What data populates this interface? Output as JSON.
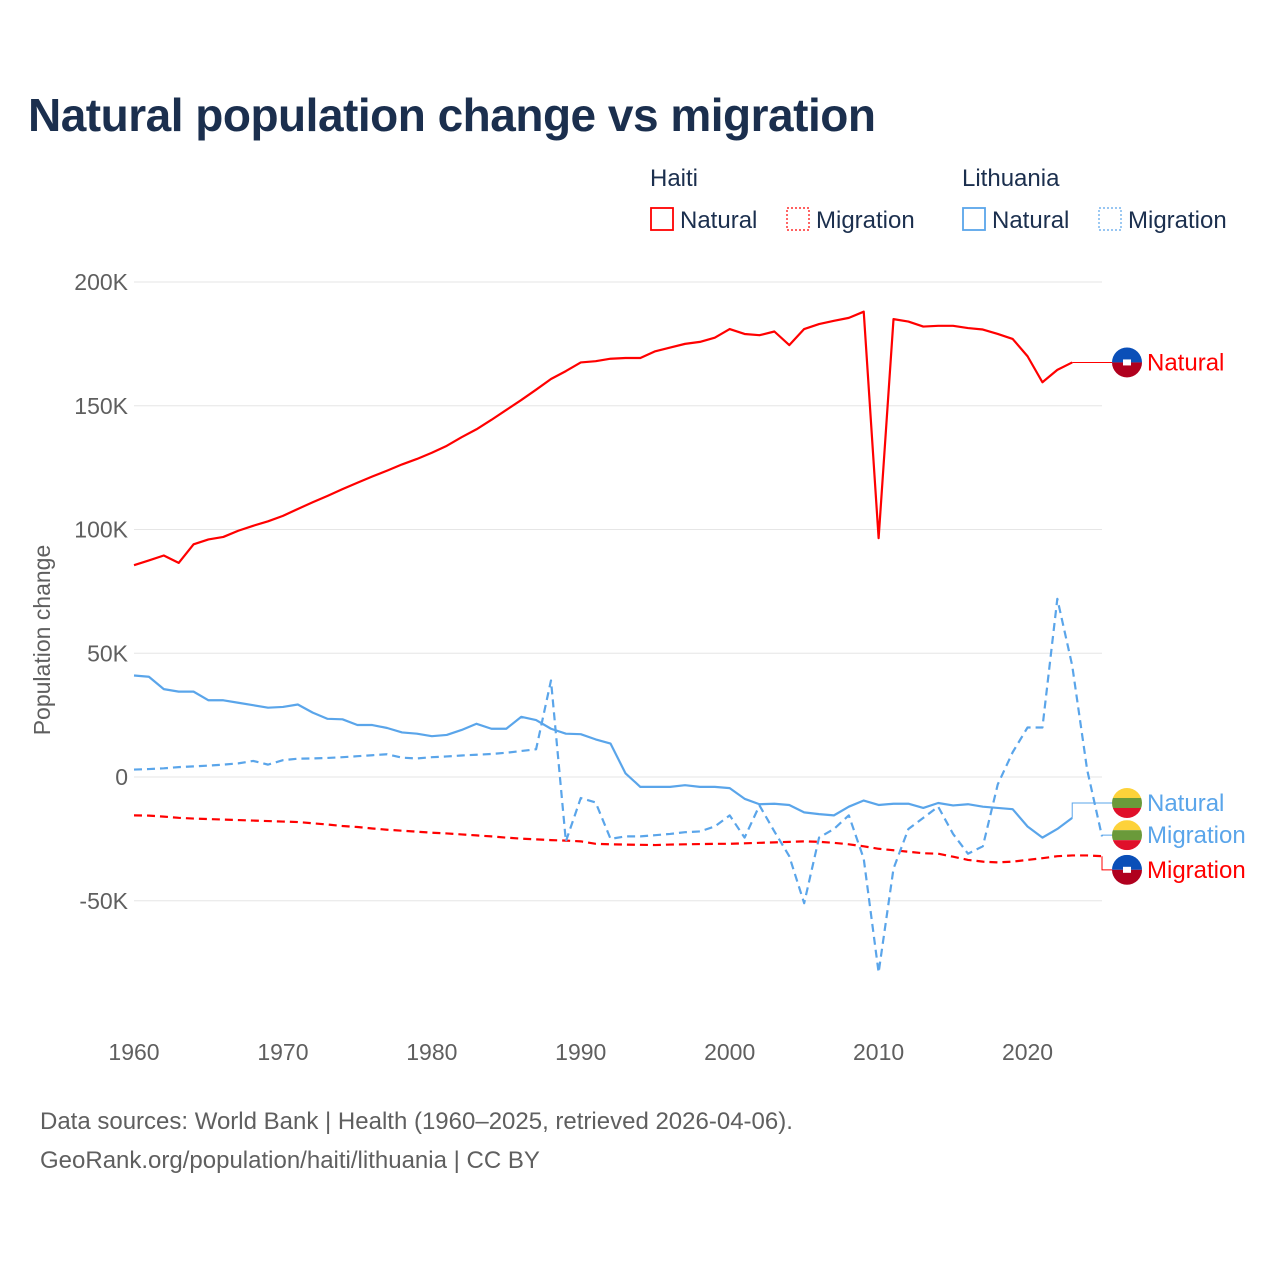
{
  "title": "Natural population change vs migration",
  "footer": {
    "line1": "Data sources: World Bank | Health (1960–2025, retrieved 2026-04-06).",
    "line2": "GeoRank.org/population/haiti/lithuania | CC BY"
  },
  "legend": {
    "groups": [
      {
        "name": "Haiti",
        "items": [
          "Natural",
          "Migration"
        ],
        "color": "#ff0000"
      },
      {
        "name": "Lithuania",
        "items": [
          "Natural",
          "Migration"
        ],
        "color": "#5aa5ea"
      }
    ]
  },
  "chart_data": {
    "type": "line",
    "title": "Natural population change vs migration",
    "xlabel": "",
    "ylabel": "Population change",
    "xlim": [
      1960,
      2025
    ],
    "ylim": [
      -100000,
      200000
    ],
    "x_ticks": [
      "1960",
      "1970",
      "1980",
      "1990",
      "2000",
      "2010",
      "2020"
    ],
    "y_ticks": [
      {
        "value": 200000,
        "label": "200K"
      },
      {
        "value": 150000,
        "label": "150K"
      },
      {
        "value": 100000,
        "label": "100K"
      },
      {
        "value": 50000,
        "label": "50K"
      },
      {
        "value": 0,
        "label": "0"
      },
      {
        "value": -50000,
        "label": "-50K"
      }
    ],
    "grid": true,
    "legend_position": "top-right",
    "series": [
      {
        "name": "Haiti Natural",
        "country": "Haiti",
        "kind": "Natural",
        "color": "#ff0000",
        "dash": "solid",
        "end_label": "Natural",
        "label_value": 167500,
        "start_year": 1960,
        "values": [
          85600,
          87500,
          89500,
          86500,
          94000,
          96000,
          97000,
          99500,
          101500,
          103300,
          105500,
          108300,
          111000,
          113600,
          116300,
          118900,
          121400,
          123800,
          126300,
          128500,
          131000,
          133800,
          137300,
          140500,
          144300,
          148300,
          152300,
          156500,
          160800,
          164000,
          167500,
          168000,
          169000,
          169300,
          169300,
          172000,
          173500,
          175000,
          175800,
          177500,
          181000,
          179000,
          178500,
          180000,
          174500,
          181000,
          183000,
          184300,
          185500,
          188000,
          96500,
          185000,
          184000,
          182000,
          182300,
          182300,
          181400,
          180800,
          179000,
          177000,
          170000,
          159500,
          164500,
          167500
        ]
      },
      {
        "name": "Haiti Migration",
        "country": "Haiti",
        "kind": "Migration",
        "color": "#ff0000",
        "dash": "dashed",
        "end_label": "Migration",
        "label_value": -37500,
        "start_year": 1960,
        "values": [
          -15500,
          -15600,
          -16000,
          -16500,
          -16800,
          -17000,
          -17200,
          -17400,
          -17600,
          -17800,
          -18000,
          -18200,
          -18700,
          -19200,
          -19800,
          -20200,
          -20800,
          -21300,
          -21700,
          -22100,
          -22500,
          -22800,
          -23200,
          -23600,
          -24000,
          -24500,
          -24900,
          -25200,
          -25500,
          -25700,
          -26000,
          -27000,
          -27200,
          -27300,
          -27400,
          -27500,
          -27300,
          -27200,
          -27100,
          -27000,
          -27000,
          -26800,
          -26600,
          -26400,
          -26200,
          -26000,
          -26200,
          -26600,
          -27200,
          -28000,
          -29000,
          -29600,
          -30200,
          -30800,
          -31000,
          -32200,
          -33500,
          -34200,
          -34500,
          -34200,
          -33500,
          -32800,
          -32000,
          -31700,
          -31700,
          -32000
        ]
      },
      {
        "name": "Lithuania Natural",
        "country": "Lithuania",
        "kind": "Natural",
        "color": "#5aa5ea",
        "dash": "solid",
        "end_label": "Natural",
        "label_value": -10500,
        "start_year": 1960,
        "values": [
          41000,
          40500,
          35500,
          34500,
          34500,
          31000,
          31000,
          30000,
          29000,
          28000,
          28300,
          29300,
          26000,
          23500,
          23300,
          21000,
          21000,
          19800,
          18000,
          17500,
          16500,
          17000,
          19000,
          21500,
          19500,
          19500,
          24300,
          23000,
          19500,
          17500,
          17300,
          15200,
          13500,
          1500,
          -4000,
          -4000,
          -4000,
          -3300,
          -4000,
          -4000,
          -4500,
          -8800,
          -11000,
          -10800,
          -11300,
          -14300,
          -15000,
          -15500,
          -12000,
          -9500,
          -11300,
          -10800,
          -10800,
          -12500,
          -10500,
          -11500,
          -11000,
          -12000,
          -12500,
          -13000,
          -20000,
          -24500,
          -21000,
          -16500
        ]
      },
      {
        "name": "Lithuania Migration",
        "country": "Lithuania",
        "kind": "Migration",
        "color": "#5aa5ea",
        "dash": "dashed",
        "end_label": "Migration",
        "label_value": -23500,
        "start_year": 1960,
        "values": [
          3000,
          3200,
          3500,
          4000,
          4300,
          4600,
          5000,
          5500,
          6500,
          5000,
          6800,
          7400,
          7500,
          7700,
          8000,
          8400,
          8800,
          9200,
          7800,
          7500,
          8000,
          8300,
          8700,
          9000,
          9300,
          9800,
          10500,
          11200,
          39000,
          -26000,
          -8500,
          -10300,
          -25000,
          -24000,
          -24000,
          -23500,
          -23000,
          -22300,
          -22000,
          -20000,
          -15500,
          -24500,
          -11500,
          -22000,
          -32000,
          -51000,
          -24500,
          -21000,
          -15500,
          -33000,
          -79000,
          -37000,
          -21000,
          -16500,
          -12000,
          -23000,
          -31000,
          -28000,
          -3000,
          10000,
          20000,
          20000,
          72000,
          45000,
          3000,
          -24000
        ]
      }
    ]
  }
}
